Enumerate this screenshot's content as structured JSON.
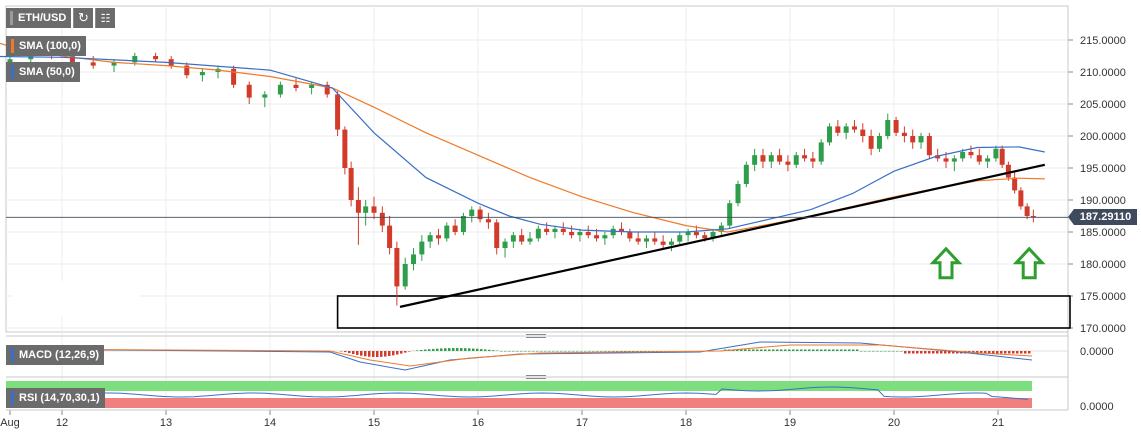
{
  "toolbar": {
    "symbol": "ETH/USD",
    "sma100_label": "SMA (100,0)",
    "sma50_label": "SMA (50,0)",
    "macd_label": "MACD (12,26,9)",
    "rsi_label": "RSI (14,70,30,1)",
    "reload_icon": "reload-icon",
    "chart-type_icon": "bar-chart-icon"
  },
  "colors": {
    "up": "#2e9e4a",
    "down": "#d23a2a",
    "sma50": "#3a6fc8",
    "sma100": "#f07a2a",
    "trendline": "#000000",
    "price_line": "#3f4a5c",
    "arrow": "#2e9e2e",
    "rsi_over": "#7dde7d",
    "rsi_under": "#f08080"
  },
  "chart_data": {
    "type": "candlestick",
    "current_price": "187.29110",
    "ylim": [
      168.5,
      218.5
    ],
    "y_ticks": [
      "215.0000",
      "210.0000",
      "205.0000",
      "200.0000",
      "195.0000",
      "190.0000",
      "185.0000",
      "180.0000",
      "175.0000",
      "170.0000"
    ],
    "x_ticks": [
      "Aug",
      "12",
      "13",
      "14",
      "15",
      "16",
      "17",
      "18",
      "19",
      "20",
      "21"
    ],
    "sma50": [
      [
        11.0,
        212.5
      ],
      [
        12.0,
        212.3
      ],
      [
        13.0,
        211.5
      ],
      [
        14.0,
        210.3
      ],
      [
        14.6,
        207.5
      ],
      [
        15.0,
        200.5
      ],
      [
        15.5,
        193.5
      ],
      [
        16.0,
        189.5
      ],
      [
        16.3,
        187.5
      ],
      [
        16.6,
        186.2
      ],
      [
        17.0,
        185.3
      ],
      [
        17.5,
        185.0
      ],
      [
        18.0,
        185.0
      ],
      [
        18.4,
        185.5
      ],
      [
        18.8,
        187.0
      ],
      [
        19.2,
        188.5
      ],
      [
        19.6,
        191.0
      ],
      [
        20.0,
        194.5
      ],
      [
        20.4,
        196.8
      ],
      [
        20.8,
        198.2
      ],
      [
        21.2,
        198.3
      ],
      [
        21.45,
        197.5
      ]
    ],
    "sma100": [
      [
        11.0,
        216.5
      ],
      [
        11.5,
        214.0
      ],
      [
        12.0,
        212.5
      ],
      [
        12.5,
        211.5
      ],
      [
        13.0,
        211.0
      ],
      [
        13.5,
        210.3
      ],
      [
        14.0,
        209.3
      ],
      [
        14.6,
        207.5
      ],
      [
        15.0,
        204.5
      ],
      [
        15.5,
        200.5
      ],
      [
        16.0,
        197.0
      ],
      [
        16.5,
        193.5
      ],
      [
        17.0,
        190.5
      ],
      [
        17.5,
        188.0
      ],
      [
        18.0,
        186.0
      ],
      [
        18.4,
        185.0
      ],
      [
        18.8,
        186.2
      ],
      [
        19.2,
        187.5
      ],
      [
        19.6,
        189.0
      ],
      [
        20.0,
        190.5
      ],
      [
        20.4,
        191.8
      ],
      [
        20.8,
        193.0
      ],
      [
        21.2,
        193.4
      ],
      [
        21.45,
        193.3
      ]
    ],
    "trendline": [
      [
        15.25,
        173.3
      ],
      [
        21.45,
        195.5
      ]
    ],
    "support_zone": {
      "x0": 14.65,
      "x1": 21.45,
      "y_low": 170.0,
      "y_high": 175.0
    },
    "up_arrows": [
      {
        "x": 20.5,
        "y": 180.5
      },
      {
        "x": 21.3,
        "y": 180.5
      }
    ],
    "candles": [
      [
        11.1,
        211.0,
        213.0,
        210.0,
        212.5
      ],
      [
        11.3,
        212.5,
        213.5,
        211.0,
        211.5
      ],
      [
        11.5,
        211.5,
        212.5,
        210.5,
        212.0
      ],
      [
        11.7,
        212.0,
        213.5,
        211.5,
        213.0
      ],
      [
        11.9,
        213.0,
        214.0,
        212.0,
        212.5
      ],
      [
        12.1,
        212.5,
        213.0,
        211.0,
        211.5
      ],
      [
        12.3,
        211.5,
        212.5,
        210.5,
        211.0
      ],
      [
        12.5,
        211.0,
        212.0,
        210.0,
        211.5
      ],
      [
        12.7,
        211.5,
        213.0,
        211.0,
        212.5
      ],
      [
        12.9,
        212.5,
        213.0,
        211.5,
        212.0
      ],
      [
        13.05,
        212.0,
        212.5,
        210.5,
        211.0
      ],
      [
        13.2,
        211.0,
        211.5,
        209.0,
        209.5
      ],
      [
        13.35,
        209.5,
        210.5,
        208.5,
        210.0
      ],
      [
        13.5,
        210.0,
        211.0,
        209.0,
        210.5
      ],
      [
        13.65,
        210.5,
        211.0,
        207.5,
        208.0
      ],
      [
        13.8,
        208.0,
        208.5,
        205.0,
        206.0
      ],
      [
        13.95,
        206.0,
        207.0,
        204.5,
        206.5
      ],
      [
        14.1,
        206.5,
        208.5,
        206.0,
        208.0
      ],
      [
        14.25,
        208.0,
        209.0,
        207.0,
        207.5
      ],
      [
        14.4,
        207.5,
        208.5,
        206.5,
        208.0
      ],
      [
        14.55,
        208.0,
        208.5,
        206.0,
        206.5
      ],
      [
        14.65,
        206.5,
        207.0,
        200.0,
        201.0
      ],
      [
        14.72,
        201.0,
        201.5,
        194.0,
        195.0
      ],
      [
        14.78,
        195.0,
        196.0,
        189.0,
        190.0
      ],
      [
        14.85,
        190.0,
        192.0,
        183.0,
        188.0
      ],
      [
        14.92,
        188.0,
        190.0,
        186.0,
        189.0
      ],
      [
        15.0,
        189.0,
        190.5,
        187.0,
        188.0
      ],
      [
        15.08,
        188.0,
        189.0,
        185.0,
        186.0
      ],
      [
        15.15,
        186.0,
        187.5,
        181.5,
        182.5
      ],
      [
        15.22,
        182.5,
        183.5,
        173.5,
        176.5
      ],
      [
        15.3,
        176.5,
        181.0,
        176.0,
        180.0
      ],
      [
        15.38,
        180.0,
        182.5,
        179.0,
        181.5
      ],
      [
        15.46,
        181.5,
        184.5,
        180.5,
        183.5
      ],
      [
        15.54,
        183.5,
        185.0,
        182.5,
        184.5
      ],
      [
        15.62,
        184.5,
        185.5,
        183.0,
        184.0
      ],
      [
        15.7,
        184.0,
        186.5,
        183.5,
        186.0
      ],
      [
        15.78,
        186.0,
        187.0,
        184.5,
        185.0
      ],
      [
        15.86,
        185.0,
        188.0,
        184.5,
        187.5
      ],
      [
        15.94,
        187.5,
        189.0,
        186.5,
        188.5
      ],
      [
        16.02,
        188.5,
        189.0,
        186.5,
        187.0
      ],
      [
        16.1,
        187.0,
        188.0,
        185.5,
        186.5
      ],
      [
        16.18,
        186.5,
        187.0,
        181.5,
        182.5
      ],
      [
        16.26,
        182.5,
        184.0,
        181.0,
        183.5
      ],
      [
        16.34,
        183.5,
        185.0,
        182.5,
        184.5
      ],
      [
        16.42,
        184.5,
        185.5,
        183.0,
        183.5
      ],
      [
        16.5,
        183.5,
        185.0,
        183.0,
        184.0
      ],
      [
        16.58,
        184.0,
        186.0,
        183.5,
        185.5
      ],
      [
        16.66,
        185.5,
        186.5,
        184.5,
        185.0
      ],
      [
        16.74,
        185.0,
        186.0,
        184.0,
        185.5
      ],
      [
        16.82,
        185.5,
        186.5,
        184.5,
        185.0
      ],
      [
        16.9,
        185.0,
        186.0,
        184.0,
        184.5
      ],
      [
        16.98,
        184.5,
        185.5,
        183.5,
        185.0
      ],
      [
        17.06,
        185.0,
        186.0,
        184.0,
        184.5
      ],
      [
        17.14,
        184.5,
        185.5,
        183.5,
        184.0
      ],
      [
        17.22,
        184.0,
        185.0,
        183.0,
        184.5
      ],
      [
        17.3,
        184.5,
        186.0,
        184.0,
        185.5
      ],
      [
        17.38,
        185.5,
        186.5,
        184.5,
        185.0
      ],
      [
        17.46,
        185.0,
        185.5,
        183.5,
        184.0
      ],
      [
        17.54,
        184.0,
        185.0,
        183.0,
        183.5
      ],
      [
        17.62,
        183.5,
        184.5,
        182.5,
        184.0
      ],
      [
        17.7,
        184.0,
        185.0,
        183.0,
        183.5
      ],
      [
        17.78,
        183.5,
        184.5,
        182.5,
        183.0
      ],
      [
        17.86,
        183.0,
        184.0,
        182.0,
        183.5
      ],
      [
        17.94,
        183.5,
        185.0,
        183.0,
        184.5
      ],
      [
        18.02,
        184.5,
        185.5,
        183.5,
        185.0
      ],
      [
        18.1,
        185.0,
        186.0,
        184.0,
        184.5
      ],
      [
        18.18,
        184.5,
        185.0,
        183.5,
        184.0
      ],
      [
        18.26,
        184.0,
        185.5,
        183.5,
        185.0
      ],
      [
        18.34,
        185.0,
        186.5,
        184.5,
        186.0
      ],
      [
        18.42,
        186.0,
        190.0,
        185.5,
        189.5
      ],
      [
        18.5,
        189.5,
        193.0,
        189.0,
        192.5
      ],
      [
        18.58,
        192.5,
        196.0,
        192.0,
        195.5
      ],
      [
        18.66,
        195.5,
        198.0,
        194.5,
        197.0
      ],
      [
        18.74,
        197.0,
        198.0,
        195.0,
        196.0
      ],
      [
        18.82,
        196.0,
        197.5,
        195.0,
        197.0
      ],
      [
        18.9,
        197.0,
        198.0,
        195.5,
        196.0
      ],
      [
        18.98,
        196.0,
        197.0,
        194.5,
        195.5
      ],
      [
        19.06,
        195.5,
        197.5,
        195.0,
        197.0
      ],
      [
        19.14,
        197.0,
        198.0,
        196.0,
        196.5
      ],
      [
        19.22,
        196.5,
        197.5,
        195.0,
        196.0
      ],
      [
        19.3,
        196.0,
        199.5,
        195.5,
        199.0
      ],
      [
        19.38,
        199.0,
        202.0,
        198.5,
        201.5
      ],
      [
        19.46,
        201.5,
        202.5,
        200.0,
        200.5
      ],
      [
        19.54,
        200.5,
        202.0,
        199.5,
        201.5
      ],
      [
        19.62,
        201.5,
        202.5,
        200.5,
        201.0
      ],
      [
        19.7,
        201.0,
        202.0,
        199.0,
        200.0
      ],
      [
        19.78,
        200.0,
        201.0,
        197.0,
        198.0
      ],
      [
        19.86,
        198.0,
        200.5,
        197.5,
        200.0
      ],
      [
        19.94,
        200.0,
        203.5,
        199.5,
        202.5
      ],
      [
        20.02,
        202.5,
        203.0,
        200.0,
        200.5
      ],
      [
        20.1,
        200.5,
        201.5,
        199.0,
        200.0
      ],
      [
        20.18,
        200.0,
        201.0,
        198.0,
        199.0
      ],
      [
        20.26,
        199.0,
        200.5,
        198.0,
        200.0
      ],
      [
        20.34,
        200.0,
        200.5,
        196.5,
        197.0
      ],
      [
        20.42,
        197.0,
        198.0,
        196.0,
        196.5
      ],
      [
        20.5,
        196.5,
        197.5,
        195.0,
        196.0
      ],
      [
        20.58,
        196.0,
        197.0,
        194.5,
        196.5
      ],
      [
        20.66,
        196.5,
        198.0,
        196.0,
        197.5
      ],
      [
        20.74,
        197.5,
        198.5,
        196.5,
        197.0
      ],
      [
        20.82,
        197.0,
        198.0,
        195.5,
        196.0
      ],
      [
        20.9,
        196.0,
        197.0,
        195.0,
        196.5
      ],
      [
        20.98,
        196.5,
        198.5,
        196.0,
        198.0
      ],
      [
        21.04,
        198.0,
        198.5,
        195.0,
        195.5
      ],
      [
        21.1,
        195.5,
        196.0,
        193.0,
        193.5
      ],
      [
        21.16,
        193.5,
        194.5,
        191.0,
        191.5
      ],
      [
        21.22,
        191.5,
        192.0,
        188.5,
        189.0
      ],
      [
        21.28,
        189.0,
        189.5,
        187.0,
        187.5
      ],
      [
        21.34,
        187.5,
        188.5,
        186.5,
        187.3
      ]
    ],
    "macd_label": "MACD (12,26,9)",
    "macd_tick": "0.0000",
    "rsi_label": "RSI (14,70,30,1)",
    "rsi_tick": "0.0000"
  }
}
